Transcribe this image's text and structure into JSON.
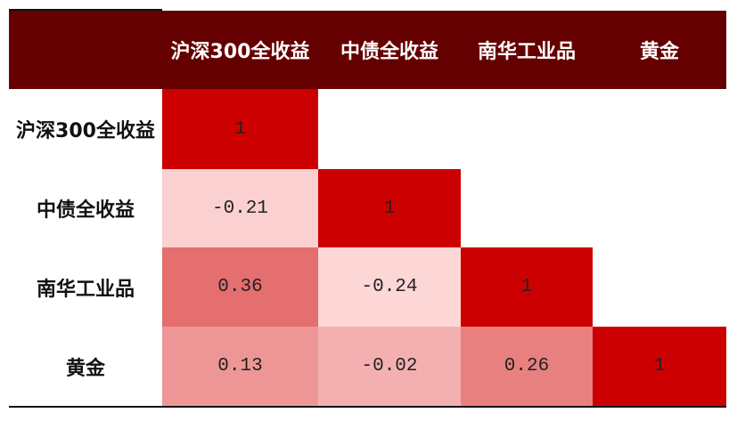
{
  "table": {
    "columns": [
      "沪深300全收益",
      "中债全收益",
      "南华工业品",
      "黄金"
    ],
    "rows": [
      {
        "label": "沪深300全收益",
        "values": [
          1,
          null,
          null,
          null
        ]
      },
      {
        "label": "中债全收益",
        "values": [
          -0.21,
          1,
          null,
          null
        ]
      },
      {
        "label": "南华工业品",
        "values": [
          0.36,
          -0.24,
          1,
          null
        ]
      },
      {
        "label": "黄金",
        "values": [
          0.13,
          -0.02,
          0.26,
          1
        ]
      }
    ]
  }
}
